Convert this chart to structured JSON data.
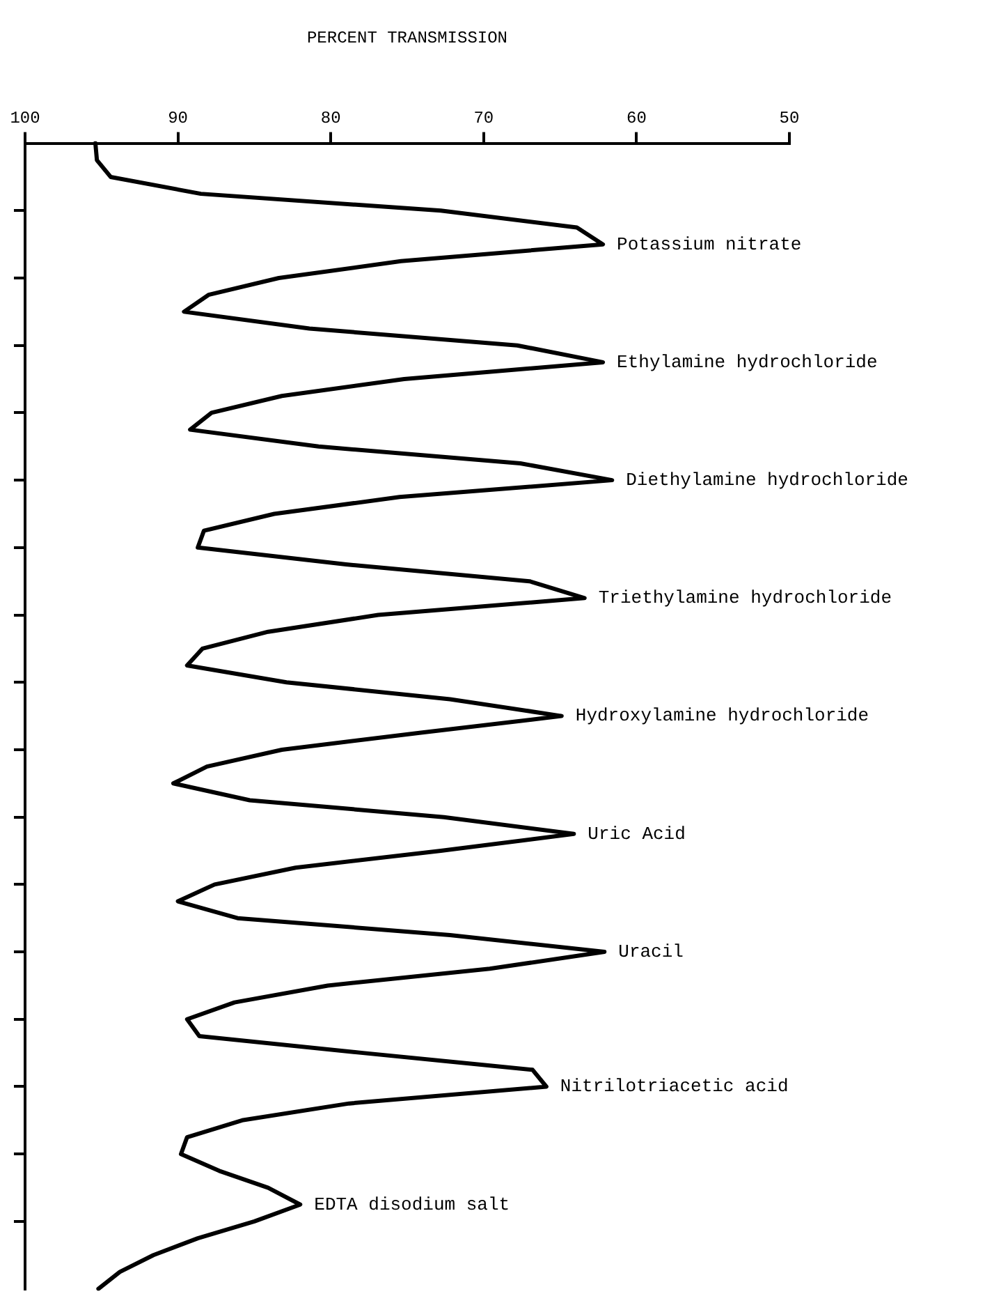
{
  "chart_data": {
    "type": "line",
    "orientation": "horizontal",
    "xlabel": "PERCENT TRANSMISSION",
    "xlim": [
      100,
      50
    ],
    "xticks": [
      100,
      90,
      80,
      70,
      60,
      50
    ],
    "categories": [
      null,
      null,
      null,
      null,
      null,
      null,
      null,
      null,
      null,
      null,
      null,
      null,
      null,
      null,
      null,
      null,
      null,
      null,
      null,
      null,
      null,
      null,
      null,
      null,
      null,
      null,
      null,
      null,
      null,
      null,
      null,
      null,
      null,
      null,
      null,
      null,
      null,
      null,
      null,
      null,
      null,
      null,
      null,
      null,
      null,
      null,
      null,
      null,
      null,
      null,
      null,
      null,
      null,
      null,
      null,
      null,
      null,
      null,
      null,
      null,
      null,
      null,
      null,
      null,
      null,
      null,
      null,
      null,
      null
    ],
    "marker": "none",
    "line_style": "solid",
    "series": [
      {
        "color": "#000000",
        "values": [
          95.4,
          95.3,
          94.4,
          88.5,
          72.8,
          63.9,
          62.2,
          75.4,
          83.4,
          88.0,
          89.6,
          81.4,
          67.8,
          62.2,
          75.2,
          83.2,
          87.8,
          89.2,
          80.8,
          67.6,
          61.6,
          75.5,
          83.7,
          88.3,
          88.7,
          79.0,
          67.0,
          63.4,
          76.9,
          84.1,
          88.4,
          89.4,
          82.9,
          72.2,
          64.9,
          74.2,
          83.2,
          88.1,
          90.3,
          85.3,
          72.6,
          64.1,
          72.8,
          82.3,
          87.6,
          90.0,
          86.1,
          72.2,
          62.1,
          69.6,
          80.2,
          86.3,
          89.4,
          88.6,
          77.9,
          66.8,
          65.9,
          78.8,
          85.8,
          89.4,
          89.8,
          87.3,
          84.1,
          82.0,
          85.0,
          88.7,
          91.6,
          93.8,
          95.2
        ]
      }
    ],
    "annotations": [
      "Potassium nitrate",
      "Ethylamine hydrochloride",
      "Diethylamine hydrochloride",
      "Triethylamine hydrochloride",
      "Hydroxylamine hydrochloride",
      "Uric Acid",
      "Uracil",
      "Nitrilotriacetic acid",
      "EDTA disodium salt"
    ]
  }
}
